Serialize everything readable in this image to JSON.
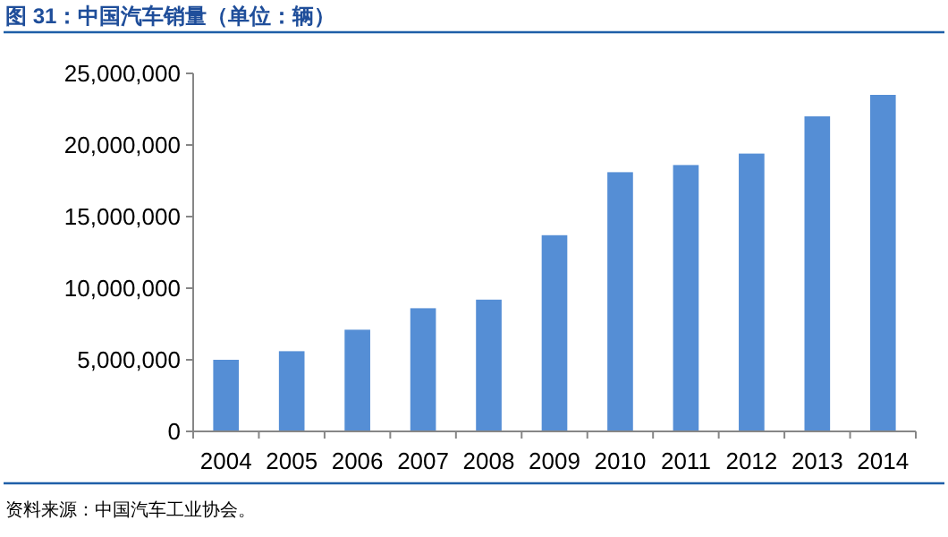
{
  "chart_data": {
    "type": "bar",
    "title": "图 31：中国汽车销量（单位：辆）",
    "categories": [
      "2004",
      "2005",
      "2006",
      "2007",
      "2008",
      "2009",
      "2010",
      "2011",
      "2012",
      "2013",
      "2014"
    ],
    "values": [
      5000000,
      5600000,
      7100000,
      8600000,
      9200000,
      13700000,
      18100000,
      18600000,
      19400000,
      22000000,
      23500000
    ],
    "color": "#558ed5",
    "ylim": [
      0,
      25000000
    ],
    "yticks": [
      {
        "value": 0,
        "label": "0"
      },
      {
        "value": 5000000,
        "label": "5,000,000"
      },
      {
        "value": 10000000,
        "label": "10,000,000"
      },
      {
        "value": 15000000,
        "label": "15,000,000"
      },
      {
        "value": 20000000,
        "label": "20,000,000"
      },
      {
        "value": 25000000,
        "label": "25,000,000"
      }
    ],
    "grid": false,
    "annotations": [
      "资料来源：中国汽车工业协会。"
    ]
  }
}
